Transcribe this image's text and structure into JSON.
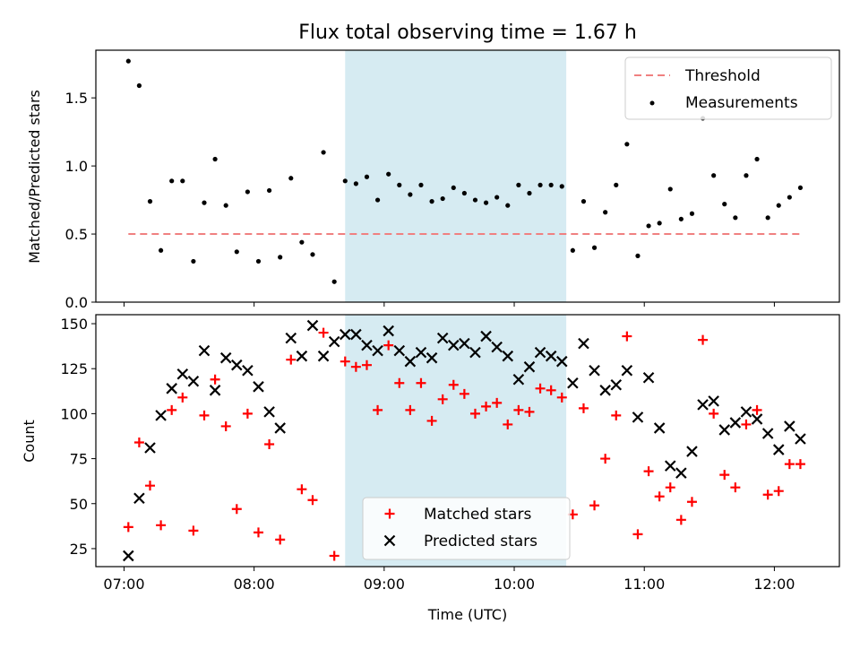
{
  "chart_data": [
    {
      "panel": "top",
      "type": "scatter",
      "title": "Flux total observing time = 1.67 h",
      "xlabel": "",
      "ylabel": "Matched/Predicted stars",
      "ylim": [
        0,
        1.85
      ],
      "yticks": [
        0.0,
        0.5,
        1.0,
        1.5
      ],
      "ytick_labels": [
        "0.0",
        "0.5",
        "1.0",
        "1.5"
      ],
      "xlim": [
        "06:47",
        "12:30"
      ],
      "grid": false,
      "legend_position": "top-right",
      "highlight_span": {
        "start": "08:42",
        "end": "10:24",
        "color": "#add8e6"
      },
      "threshold": {
        "name": "Threshold",
        "value": 0.5,
        "x": [
          "07:02",
          "12:12"
        ],
        "color": "#f08080",
        "style": "dashed"
      },
      "series": [
        {
          "name": "Measurements",
          "color": "#000000",
          "marker": "dot",
          "points": [
            [
              "07:02",
              1.77
            ],
            [
              "07:07",
              1.59
            ],
            [
              "07:12",
              0.74
            ],
            [
              "07:17",
              0.38
            ],
            [
              "07:22",
              0.89
            ],
            [
              "07:27",
              0.89
            ],
            [
              "07:32",
              0.3
            ],
            [
              "07:37",
              0.73
            ],
            [
              "07:42",
              1.05
            ],
            [
              "07:47",
              0.71
            ],
            [
              "07:52",
              0.37
            ],
            [
              "07:57",
              0.81
            ],
            [
              "08:02",
              0.3
            ],
            [
              "08:07",
              0.82
            ],
            [
              "08:12",
              0.33
            ],
            [
              "08:17",
              0.91
            ],
            [
              "08:22",
              0.44
            ],
            [
              "08:27",
              0.35
            ],
            [
              "08:32",
              1.1
            ],
            [
              "08:37",
              0.15
            ],
            [
              "08:42",
              0.89
            ],
            [
              "08:47",
              0.87
            ],
            [
              "08:52",
              0.92
            ],
            [
              "08:57",
              0.75
            ],
            [
              "09:02",
              0.94
            ],
            [
              "09:07",
              0.86
            ],
            [
              "09:12",
              0.79
            ],
            [
              "09:17",
              0.86
            ],
            [
              "09:22",
              0.74
            ],
            [
              "09:27",
              0.76
            ],
            [
              "09:32",
              0.84
            ],
            [
              "09:37",
              0.8
            ],
            [
              "09:42",
              0.75
            ],
            [
              "09:47",
              0.73
            ],
            [
              "09:52",
              0.77
            ],
            [
              "09:57",
              0.71
            ],
            [
              "10:02",
              0.86
            ],
            [
              "10:07",
              0.8
            ],
            [
              "10:12",
              0.86
            ],
            [
              "10:17",
              0.86
            ],
            [
              "10:22",
              0.85
            ],
            [
              "10:27",
              0.38
            ],
            [
              "10:32",
              0.74
            ],
            [
              "10:37",
              0.4
            ],
            [
              "10:42",
              0.66
            ],
            [
              "10:47",
              0.86
            ],
            [
              "10:52",
              1.16
            ],
            [
              "10:57",
              0.34
            ],
            [
              "11:02",
              0.56
            ],
            [
              "11:07",
              0.58
            ],
            [
              "11:12",
              0.83
            ],
            [
              "11:17",
              0.61
            ],
            [
              "11:22",
              0.65
            ],
            [
              "11:27",
              1.35
            ],
            [
              "11:32",
              0.93
            ],
            [
              "11:37",
              0.72
            ],
            [
              "11:42",
              0.62
            ],
            [
              "11:47",
              0.93
            ],
            [
              "11:52",
              1.05
            ],
            [
              "11:57",
              0.62
            ],
            [
              "12:02",
              0.71
            ],
            [
              "12:07",
              0.77
            ],
            [
              "12:12",
              0.84
            ]
          ]
        }
      ]
    },
    {
      "panel": "bottom",
      "type": "scatter",
      "title": "",
      "xlabel": "Time (UTC)",
      "ylabel": "Count",
      "ylim": [
        15,
        155
      ],
      "yticks": [
        25,
        50,
        75,
        100,
        125,
        150
      ],
      "ytick_labels": [
        "25",
        "50",
        "75",
        "100",
        "125",
        "150"
      ],
      "xlim": [
        "06:47",
        "12:30"
      ],
      "xticks": [
        "07:00",
        "08:00",
        "09:00",
        "10:00",
        "11:00",
        "12:00"
      ],
      "xtick_labels": [
        "07:00",
        "08:00",
        "09:00",
        "10:00",
        "11:00",
        "12:00"
      ],
      "grid": false,
      "legend_position": "bottom-center",
      "highlight_span": {
        "start": "08:42",
        "end": "10:24",
        "color": "#add8e6"
      },
      "series": [
        {
          "name": "Matched stars",
          "color": "#ff0000",
          "marker": "plus",
          "points": [
            [
              "07:02",
              37
            ],
            [
              "07:07",
              84
            ],
            [
              "07:12",
              60
            ],
            [
              "07:17",
              38
            ],
            [
              "07:22",
              102
            ],
            [
              "07:27",
              109
            ],
            [
              "07:32",
              35
            ],
            [
              "07:37",
              99
            ],
            [
              "07:42",
              119
            ],
            [
              "07:47",
              93
            ],
            [
              "07:52",
              47
            ],
            [
              "07:57",
              100
            ],
            [
              "08:02",
              34
            ],
            [
              "08:07",
              83
            ],
            [
              "08:12",
              30
            ],
            [
              "08:17",
              130
            ],
            [
              "08:22",
              58
            ],
            [
              "08:27",
              52
            ],
            [
              "08:32",
              145
            ],
            [
              "08:37",
              21
            ],
            [
              "08:42",
              129
            ],
            [
              "08:47",
              126
            ],
            [
              "08:52",
              127
            ],
            [
              "08:57",
              102
            ],
            [
              "09:02",
              138
            ],
            [
              "09:07",
              117
            ],
            [
              "09:12",
              102
            ],
            [
              "09:17",
              117
            ],
            [
              "09:22",
              96
            ],
            [
              "09:27",
              108
            ],
            [
              "09:32",
              116
            ],
            [
              "09:37",
              111
            ],
            [
              "09:42",
              100
            ],
            [
              "09:47",
              104
            ],
            [
              "09:52",
              106
            ],
            [
              "09:57",
              94
            ],
            [
              "10:02",
              102
            ],
            [
              "10:07",
              101
            ],
            [
              "10:12",
              114
            ],
            [
              "10:17",
              113
            ],
            [
              "10:22",
              109
            ],
            [
              "10:27",
              44
            ],
            [
              "10:32",
              103
            ],
            [
              "10:37",
              49
            ],
            [
              "10:42",
              75
            ],
            [
              "10:47",
              99
            ],
            [
              "10:52",
              143
            ],
            [
              "10:57",
              33
            ],
            [
              "11:02",
              68
            ],
            [
              "11:07",
              54
            ],
            [
              "11:12",
              59
            ],
            [
              "11:17",
              41
            ],
            [
              "11:22",
              51
            ],
            [
              "11:27",
              141
            ],
            [
              "11:32",
              100
            ],
            [
              "11:37",
              66
            ],
            [
              "11:42",
              59
            ],
            [
              "11:47",
              94
            ],
            [
              "11:52",
              102
            ],
            [
              "11:57",
              55
            ],
            [
              "12:02",
              57
            ],
            [
              "12:07",
              72
            ],
            [
              "12:12",
              72
            ]
          ]
        },
        {
          "name": "Predicted stars",
          "color": "#000000",
          "marker": "x",
          "points": [
            [
              "07:02",
              21
            ],
            [
              "07:07",
              53
            ],
            [
              "07:12",
              81
            ],
            [
              "07:17",
              99
            ],
            [
              "07:22",
              114
            ],
            [
              "07:27",
              122
            ],
            [
              "07:32",
              118
            ],
            [
              "07:37",
              135
            ],
            [
              "07:42",
              113
            ],
            [
              "07:47",
              131
            ],
            [
              "07:52",
              127
            ],
            [
              "07:57",
              124
            ],
            [
              "08:02",
              115
            ],
            [
              "08:07",
              101
            ],
            [
              "08:12",
              92
            ],
            [
              "08:17",
              142
            ],
            [
              "08:22",
              132
            ],
            [
              "08:27",
              149
            ],
            [
              "08:32",
              132
            ],
            [
              "08:37",
              140
            ],
            [
              "08:42",
              144
            ],
            [
              "08:47",
              144
            ],
            [
              "08:52",
              138
            ],
            [
              "08:57",
              135
            ],
            [
              "09:02",
              146
            ],
            [
              "09:07",
              135
            ],
            [
              "09:12",
              129
            ],
            [
              "09:17",
              134
            ],
            [
              "09:22",
              131
            ],
            [
              "09:27",
              142
            ],
            [
              "09:32",
              138
            ],
            [
              "09:37",
              139
            ],
            [
              "09:42",
              134
            ],
            [
              "09:47",
              143
            ],
            [
              "09:52",
              137
            ],
            [
              "09:57",
              132
            ],
            [
              "10:02",
              119
            ],
            [
              "10:07",
              126
            ],
            [
              "10:12",
              134
            ],
            [
              "10:17",
              132
            ],
            [
              "10:22",
              129
            ],
            [
              "10:27",
              117
            ],
            [
              "10:32",
              139
            ],
            [
              "10:37",
              124
            ],
            [
              "10:42",
              113
            ],
            [
              "10:47",
              116
            ],
            [
              "10:52",
              124
            ],
            [
              "10:57",
              98
            ],
            [
              "11:02",
              120
            ],
            [
              "11:07",
              92
            ],
            [
              "11:12",
              71
            ],
            [
              "11:17",
              67
            ],
            [
              "11:22",
              79
            ],
            [
              "11:27",
              105
            ],
            [
              "11:32",
              107
            ],
            [
              "11:37",
              91
            ],
            [
              "11:42",
              95
            ],
            [
              "11:47",
              101
            ],
            [
              "11:52",
              97
            ],
            [
              "11:57",
              89
            ],
            [
              "12:02",
              80
            ],
            [
              "12:07",
              93
            ],
            [
              "12:12",
              86
            ]
          ]
        }
      ]
    }
  ]
}
